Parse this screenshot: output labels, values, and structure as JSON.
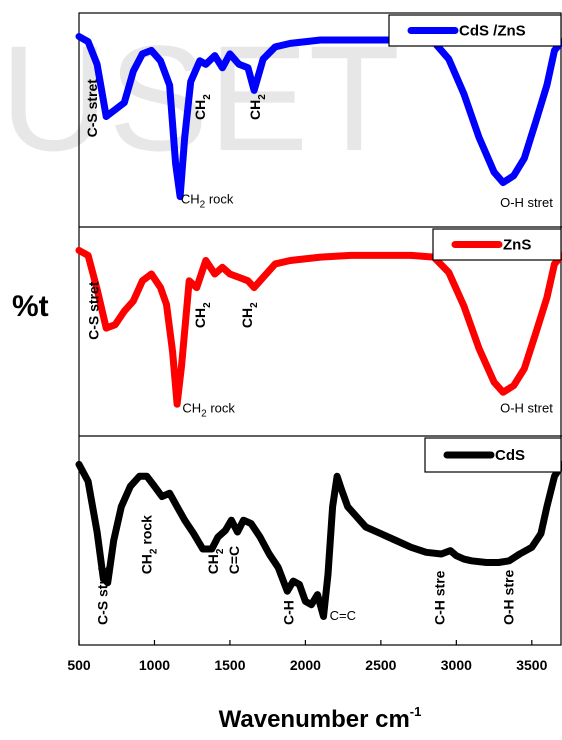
{
  "watermark": "USET",
  "chart_data": {
    "type": "line",
    "xlabel": "Wavenumber cm",
    "xlabel_sup": "-1",
    "ylabel": "%t",
    "xlim": [
      500,
      3700
    ],
    "x_ticks": [
      "500",
      "1000",
      "1500",
      "2000",
      "2500",
      "3000",
      "3500"
    ],
    "panels": [
      {
        "legend": "CdS /ZnS",
        "color": "#0000ff",
        "x": [
          500,
          560,
          620,
          680,
          740,
          800,
          860,
          920,
          980,
          1040,
          1100,
          1140,
          1170,
          1200,
          1240,
          1300,
          1340,
          1400,
          1450,
          1500,
          1560,
          1620,
          1660,
          1720,
          1800,
          1900,
          2100,
          2300,
          2500,
          2700,
          2850,
          2950,
          3050,
          3150,
          3250,
          3310,
          3380,
          3450,
          3530,
          3600,
          3650,
          3700
        ],
        "y": [
          0.02,
          0.05,
          0.18,
          0.48,
          0.44,
          0.4,
          0.22,
          0.12,
          0.1,
          0.16,
          0.3,
          0.75,
          0.94,
          0.6,
          0.28,
          0.16,
          0.18,
          0.13,
          0.2,
          0.12,
          0.18,
          0.2,
          0.33,
          0.15,
          0.08,
          0.06,
          0.04,
          0.04,
          0.04,
          0.04,
          0.05,
          0.15,
          0.35,
          0.6,
          0.8,
          0.86,
          0.82,
          0.72,
          0.5,
          0.3,
          0.1,
          0.05
        ],
        "annotations": [
          {
            "text": "C-S stret",
            "x": 620,
            "y": 0.6,
            "vertical": true
          },
          {
            "text": "CH",
            "sub": "2",
            "suffix": " rock",
            "x": 1175,
            "y": 0.98,
            "vertical": false
          },
          {
            "text": "CH",
            "sub": "2",
            "x": 1335,
            "y": 0.5,
            "vertical": true
          },
          {
            "text": "CH",
            "sub": "2",
            "x": 1700,
            "y": 0.5,
            "vertical": true
          },
          {
            "text": "O-H stret",
            "x": 3290,
            "y": 1.0,
            "vertical": false
          }
        ]
      },
      {
        "legend": "ZnS",
        "color": "#ff0000",
        "x": [
          500,
          560,
          620,
          680,
          740,
          800,
          860,
          920,
          980,
          1040,
          1080,
          1120,
          1150,
          1180,
          1230,
          1280,
          1340,
          1400,
          1450,
          1500,
          1560,
          1620,
          1660,
          1720,
          1800,
          1900,
          2100,
          2300,
          2500,
          2700,
          2850,
          2950,
          3050,
          3150,
          3250,
          3310,
          3380,
          3450,
          3530,
          3600,
          3650,
          3700
        ],
        "y": [
          0.02,
          0.05,
          0.25,
          0.48,
          0.46,
          0.38,
          0.32,
          0.2,
          0.16,
          0.24,
          0.34,
          0.62,
          0.93,
          0.7,
          0.2,
          0.24,
          0.08,
          0.16,
          0.12,
          0.16,
          0.18,
          0.2,
          0.24,
          0.18,
          0.1,
          0.08,
          0.06,
          0.05,
          0.05,
          0.05,
          0.06,
          0.15,
          0.35,
          0.6,
          0.8,
          0.86,
          0.82,
          0.72,
          0.5,
          0.3,
          0.1,
          0.05
        ],
        "annotations": [
          {
            "text": "C-S stret",
            "x": 630,
            "y": 0.55,
            "vertical": true
          },
          {
            "text": "CH",
            "sub": "2",
            "suffix": " rock",
            "x": 1185,
            "y": 0.98,
            "vertical": false
          },
          {
            "text": "CH",
            "sub": "2",
            "x": 1335,
            "y": 0.48,
            "vertical": true
          },
          {
            "text": "CH",
            "sub": "2",
            "x": 1645,
            "y": 0.48,
            "vertical": true
          },
          {
            "text": "O-H stret",
            "x": 3290,
            "y": 0.98,
            "vertical": false
          }
        ]
      },
      {
        "legend": "CdS",
        "color": "#000000",
        "x": [
          500,
          560,
          620,
          660,
          690,
          730,
          780,
          840,
          900,
          950,
          1000,
          1050,
          1100,
          1150,
          1200,
          1260,
          1320,
          1380,
          1420,
          1470,
          1510,
          1550,
          1590,
          1640,
          1700,
          1760,
          1820,
          1880,
          1920,
          1960,
          2000,
          2040,
          2080,
          2120,
          2150,
          2180,
          2210,
          2240,
          2280,
          2340,
          2400,
          2500,
          2600,
          2700,
          2800,
          2900,
          2960,
          3000,
          3050,
          3100,
          3200,
          3280,
          3350,
          3420,
          3500,
          3560,
          3600,
          3650,
          3700
        ],
        "y": [
          0.05,
          0.15,
          0.45,
          0.72,
          0.75,
          0.5,
          0.3,
          0.18,
          0.12,
          0.12,
          0.18,
          0.24,
          0.22,
          0.3,
          0.38,
          0.46,
          0.55,
          0.55,
          0.48,
          0.44,
          0.38,
          0.45,
          0.38,
          0.4,
          0.48,
          0.58,
          0.66,
          0.8,
          0.74,
          0.76,
          0.86,
          0.88,
          0.82,
          0.95,
          0.7,
          0.3,
          0.12,
          0.2,
          0.3,
          0.36,
          0.42,
          0.46,
          0.5,
          0.54,
          0.57,
          0.58,
          0.56,
          0.59,
          0.61,
          0.62,
          0.63,
          0.63,
          0.62,
          0.58,
          0.54,
          0.46,
          0.3,
          0.12,
          0.05
        ],
        "annotations": [
          {
            "text": "C-S stret",
            "x": 690,
            "y": 1.0,
            "vertical": true
          },
          {
            "text": "CH",
            "sub": "2",
            "suffix": " rock",
            "x": 980,
            "y": 0.7,
            "vertical": true
          },
          {
            "text": "CH",
            "sub": "2",
            "x": 1420,
            "y": 0.7,
            "vertical": true
          },
          {
            "text": "C=C",
            "x": 1560,
            "y": 0.7,
            "vertical": true
          },
          {
            "text": "C-H",
            "x": 1920,
            "y": 1.0,
            "vertical": true
          },
          {
            "text": "C=C",
            "x": 2160,
            "y": 0.97,
            "vertical": false
          },
          {
            "text": "C-H stre",
            "x": 2920,
            "y": 1.0,
            "vertical": true
          },
          {
            "text": "O-H stre",
            "x": 3380,
            "y": 1.0,
            "vertical": true
          }
        ]
      }
    ]
  }
}
